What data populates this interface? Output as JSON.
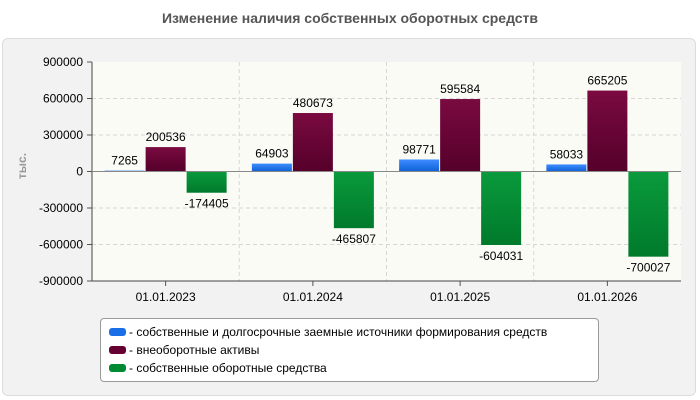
{
  "chart_data": {
    "type": "bar",
    "title": "Изменение наличия собственных оборотных средств",
    "ylabel": "тыс.",
    "xlabel": "",
    "categories": [
      "01.01.2023",
      "01.01.2024",
      "01.01.2025",
      "01.01.2026"
    ],
    "ylim": [
      -900000,
      900000
    ],
    "yticks": [
      900000,
      600000,
      300000,
      0,
      -300000,
      -600000,
      -900000
    ],
    "grid": true,
    "legend_position": "bottom",
    "series": [
      {
        "name": "- собственные и долгосрочные заемные источники формирования средств",
        "color": "#1a6fe8",
        "values": [
          7265,
          64903,
          98771,
          58033
        ]
      },
      {
        "name": "- внеоборотные активы",
        "color": "#660033",
        "values": [
          200536,
          480673,
          595584,
          665205
        ]
      },
      {
        "name": "- собственные оборотные средства",
        "color": "#008a32",
        "values": [
          -174405,
          -465807,
          -604031,
          -700027
        ]
      }
    ]
  }
}
